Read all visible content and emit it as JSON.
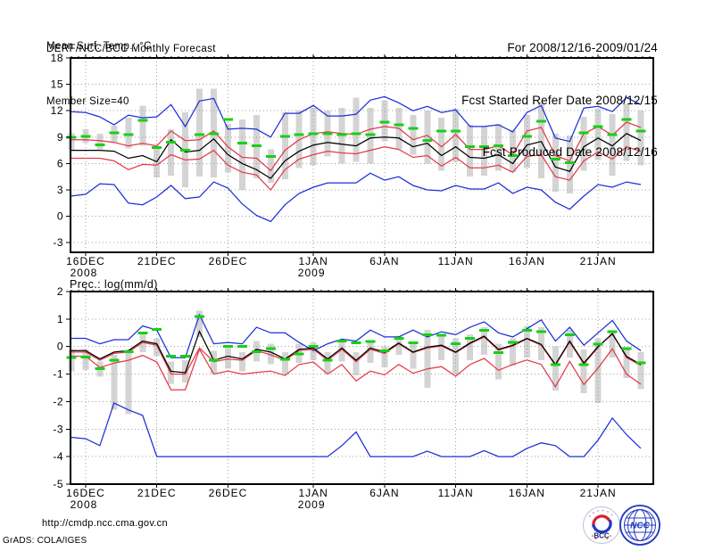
{
  "header": {
    "left": {
      "line1": "DERF/NCC/BCC Monthly Forecast",
      "line2": "Member Size=40"
    },
    "right": {
      "line1": "For 2008/12/16-2009/01/24",
      "line2": "Fcst Started Refer Date 2008/12/15",
      "line3": "Fcst Produced Date 2008/12/16"
    }
  },
  "footer": {
    "url": "http://cmdp.ncc.cma.gov.cn",
    "credit": "GrADS: COLA/IGES"
  },
  "logos": {
    "bcc": "BCC",
    "ncc": "NCC"
  },
  "colors": {
    "blue": "#1c2fd8",
    "red": "#e23b49",
    "green": "#16d018",
    "black": "#000000",
    "bar_gray": "#d4d4d4",
    "grid_gray": "#a0a0a0"
  },
  "chart_data": [
    {
      "type": "line",
      "title": "Mean Surf. Temp.: °C",
      "ylim": [
        -4.1,
        18
      ],
      "yticks": [
        -3,
        0,
        3,
        6,
        9,
        12,
        15,
        18
      ],
      "grid": true,
      "legend": "none",
      "xtick_labels": [
        {
          "index": 1,
          "label": "16DEC",
          "sub": "2008"
        },
        {
          "index": 6,
          "label": "21DEC",
          "sub": ""
        },
        {
          "index": 11,
          "label": "26DEC",
          "sub": ""
        },
        {
          "index": 17,
          "label": "1JAN",
          "sub": "2009"
        },
        {
          "index": 22,
          "label": "6JAN",
          "sub": ""
        },
        {
          "index": 27,
          "label": "11JAN",
          "sub": ""
        },
        {
          "index": 32,
          "label": "16JAN",
          "sub": ""
        },
        {
          "index": 37,
          "label": "21JAN",
          "sub": ""
        }
      ],
      "dates": [
        "2008-12-15",
        "2008-12-16",
        "2008-12-17",
        "2008-12-18",
        "2008-12-19",
        "2008-12-20",
        "2008-12-21",
        "2008-12-22",
        "2008-12-23",
        "2008-12-24",
        "2008-12-25",
        "2008-12-26",
        "2008-12-27",
        "2008-12-28",
        "2008-12-29",
        "2008-12-30",
        "2008-12-31",
        "2009-01-01",
        "2009-01-02",
        "2009-01-03",
        "2009-01-04",
        "2009-01-05",
        "2009-01-06",
        "2009-01-07",
        "2009-01-08",
        "2009-01-09",
        "2009-01-10",
        "2009-01-11",
        "2009-01-12",
        "2009-01-13",
        "2009-01-14",
        "2009-01-15",
        "2009-01-16",
        "2009-01-17",
        "2009-01-18",
        "2009-01-19",
        "2009-01-20",
        "2009-01-21",
        "2009-01-22",
        "2009-01-23",
        "2009-01-24"
      ],
      "series": [
        {
          "name": "ensemble-max",
          "color": "blue",
          "values": [
            11.9,
            11.8,
            11.3,
            10.4,
            11.5,
            11.2,
            11.3,
            12.7,
            10.2,
            13.1,
            13.4,
            9.9,
            10.0,
            9.9,
            9.0,
            11.7,
            11.7,
            12.6,
            11.4,
            11.4,
            11.6,
            13.2,
            13.6,
            12.9,
            12.0,
            12.5,
            11.8,
            12.1,
            10.2,
            10.2,
            10.4,
            9.6,
            11.8,
            12.6,
            8.9,
            8.5,
            12.3,
            12.5,
            11.9,
            13.5,
            12.7
          ]
        },
        {
          "name": "upper-quartile",
          "color": "red",
          "values": [
            8.7,
            8.7,
            8.6,
            8.4,
            8.0,
            8.3,
            8.0,
            9.7,
            8.6,
            8.7,
            9.7,
            7.9,
            6.7,
            6.6,
            5.2,
            7.5,
            8.7,
            9.4,
            9.6,
            9.4,
            9.3,
            9.9,
            10.2,
            10.0,
            8.7,
            9.2,
            7.9,
            9.3,
            7.6,
            7.6,
            8.0,
            7.0,
            9.7,
            10.1,
            6.9,
            6.3,
            9.4,
            10.2,
            9.2,
            10.7,
            10.1
          ]
        },
        {
          "name": "ensemble-mean",
          "color": "black",
          "values": [
            7.5,
            7.5,
            7.5,
            7.4,
            6.6,
            6.9,
            6.2,
            8.7,
            7.3,
            7.5,
            8.8,
            7.0,
            6.0,
            5.3,
            4.3,
            6.3,
            7.4,
            8.1,
            8.4,
            8.2,
            8.0,
            8.9,
            9.0,
            8.9,
            7.9,
            8.3,
            6.9,
            7.9,
            6.7,
            6.6,
            7.0,
            6.0,
            8.1,
            8.5,
            5.6,
            5.1,
            7.9,
            8.9,
            8.0,
            9.4,
            8.6
          ]
        },
        {
          "name": "lower-quartile",
          "color": "red",
          "values": [
            6.6,
            6.6,
            6.6,
            6.3,
            5.3,
            5.9,
            5.8,
            7.0,
            6.4,
            6.5,
            7.5,
            5.8,
            5.0,
            4.7,
            3.0,
            5.3,
            6.5,
            7.0,
            7.4,
            7.2,
            7.1,
            7.5,
            7.9,
            7.6,
            6.7,
            6.9,
            5.7,
            6.7,
            5.5,
            5.5,
            5.8,
            5.0,
            6.8,
            7.0,
            4.5,
            4.1,
            6.3,
            7.3,
            6.5,
            7.9,
            7.4
          ]
        },
        {
          "name": "ensemble-min",
          "color": "blue",
          "values": [
            2.3,
            2.5,
            3.7,
            3.6,
            1.5,
            1.3,
            2.2,
            3.5,
            2.0,
            2.2,
            3.9,
            3.2,
            1.4,
            0.1,
            -0.6,
            1.3,
            2.6,
            3.3,
            3.8,
            3.8,
            3.8,
            4.9,
            4.1,
            4.5,
            3.5,
            3.0,
            2.9,
            3.5,
            3.1,
            3.1,
            3.8,
            2.6,
            3.3,
            3.0,
            1.6,
            0.8,
            2.3,
            3.6,
            3.3,
            3.9,
            3.6
          ]
        },
        {
          "name": "observation",
          "color": "green",
          "marker": "dash",
          "values": [
            9.0,
            9.1,
            8.1,
            9.5,
            9.3,
            10.9,
            7.8,
            8.4,
            7.5,
            9.3,
            9.4,
            11.0,
            8.3,
            8.0,
            6.8,
            9.1,
            9.3,
            9.4,
            9.4,
            9.3,
            9.4,
            9.3,
            10.7,
            10.4,
            10.0,
            8.6,
            9.7,
            9.7,
            7.9,
            7.9,
            8.0,
            6.9,
            9.1,
            10.8,
            6.5,
            6.1,
            9.5,
            10.2,
            9.3,
            11.0,
            9.7
          ]
        }
      ],
      "bars": {
        "name": "member-spread",
        "low": [
          7.5,
          8.3,
          7.6,
          8.4,
          7.7,
          8.0,
          4.4,
          4.6,
          3.3,
          4.5,
          4.4,
          5.0,
          3.0,
          4.3,
          3.8,
          4.2,
          5.5,
          5.8,
          6.8,
          6.0,
          6.2,
          6.0,
          8.5,
          7.6,
          7.0,
          6.0,
          5.2,
          6.2,
          4.5,
          4.6,
          5.2,
          5.0,
          5.5,
          4.3,
          2.8,
          2.6,
          5.2,
          6.4,
          4.6,
          6.3,
          5.8
        ],
        "high": [
          9.5,
          9.9,
          9.4,
          10.3,
          11.2,
          12.6,
          8.0,
          9.9,
          11.8,
          14.5,
          14.5,
          10.5,
          11.0,
          11.5,
          7.6,
          11.8,
          12.0,
          12.3,
          12.0,
          12.3,
          13.5,
          12.3,
          13.2,
          12.3,
          11.5,
          12.0,
          11.2,
          12.2,
          10.4,
          10.2,
          10.5,
          9.8,
          11.5,
          13.0,
          9.4,
          9.2,
          11.3,
          12.2,
          11.6,
          12.8,
          12.0
        ]
      }
    },
    {
      "type": "line",
      "title": "Prec.: log(mm/d)",
      "ylim": [
        -5,
        2
      ],
      "yticks": [
        -5,
        -4,
        -3,
        -2,
        -1,
        0,
        1,
        2
      ],
      "grid": true,
      "legend": "none",
      "xtick_labels": [
        {
          "index": 1,
          "label": "16DEC",
          "sub": "2008"
        },
        {
          "index": 6,
          "label": "21DEC",
          "sub": ""
        },
        {
          "index": 11,
          "label": "26DEC",
          "sub": ""
        },
        {
          "index": 17,
          "label": "1JAN",
          "sub": "2009"
        },
        {
          "index": 22,
          "label": "6JAN",
          "sub": ""
        },
        {
          "index": 27,
          "label": "11JAN",
          "sub": ""
        },
        {
          "index": 32,
          "label": "16JAN",
          "sub": ""
        },
        {
          "index": 37,
          "label": "21JAN",
          "sub": ""
        }
      ],
      "dates": [
        "2008-12-15",
        "2008-12-16",
        "2008-12-17",
        "2008-12-18",
        "2008-12-19",
        "2008-12-20",
        "2008-12-21",
        "2008-12-22",
        "2008-12-23",
        "2008-12-24",
        "2008-12-25",
        "2008-12-26",
        "2008-12-27",
        "2008-12-28",
        "2008-12-29",
        "2008-12-30",
        "2008-12-31",
        "2009-01-01",
        "2009-01-02",
        "2009-01-03",
        "2009-01-04",
        "2009-01-05",
        "2009-01-06",
        "2009-01-07",
        "2009-01-08",
        "2009-01-09",
        "2009-01-10",
        "2009-01-11",
        "2009-01-12",
        "2009-01-13",
        "2009-01-14",
        "2009-01-15",
        "2009-01-16",
        "2009-01-17",
        "2009-01-18",
        "2009-01-19",
        "2009-01-20",
        "2009-01-21",
        "2009-01-22",
        "2009-01-23",
        "2009-01-24"
      ],
      "series": [
        {
          "name": "ensemble-max",
          "color": "blue",
          "values": [
            0.3,
            0.3,
            0.1,
            0.25,
            0.25,
            0.75,
            0.6,
            -0.4,
            -0.4,
            1.15,
            0.1,
            0.15,
            0.1,
            0.7,
            0.5,
            0.5,
            0.15,
            -0.15,
            0.1,
            0.27,
            0.2,
            0.6,
            0.35,
            0.35,
            0.6,
            0.35,
            0.54,
            0.43,
            0.7,
            0.9,
            0.5,
            0.35,
            0.65,
            0.97,
            0.2,
            0.7,
            0.05,
            0.5,
            0.95,
            0.2,
            -0.15
          ]
        },
        {
          "name": "upper-quartile",
          "color": "red",
          "values": [
            -0.2,
            -0.2,
            -0.5,
            -0.25,
            -0.2,
            0.15,
            0.05,
            -1.0,
            -1.0,
            -0.05,
            -0.55,
            -0.45,
            -0.5,
            -0.15,
            -0.3,
            -0.5,
            -0.15,
            -0.1,
            -0.5,
            -0.1,
            -0.55,
            -0.1,
            -0.25,
            0.1,
            -0.22,
            -0.05,
            0.02,
            -0.22,
            0.1,
            0.35,
            -0.13,
            0.02,
            0.28,
            0.05,
            -0.68,
            0.17,
            -0.63,
            -0.03,
            0.48,
            -0.4,
            -0.68
          ]
        },
        {
          "name": "ensemble-mean",
          "color": "black",
          "values": [
            -0.15,
            -0.15,
            -0.45,
            -0.2,
            -0.15,
            0.2,
            0.1,
            -0.9,
            -0.95,
            0.55,
            -0.5,
            -0.35,
            -0.45,
            -0.1,
            -0.2,
            -0.45,
            -0.1,
            -0.05,
            -0.45,
            -0.05,
            -0.5,
            -0.05,
            -0.2,
            0.13,
            -0.2,
            -0.02,
            0.05,
            -0.2,
            0.13,
            0.38,
            -0.1,
            0.05,
            0.3,
            0.08,
            -0.65,
            0.2,
            -0.6,
            0.0,
            0.46,
            -0.36,
            -0.65
          ]
        },
        {
          "name": "lower-quartile",
          "color": "red",
          "values": [
            -0.35,
            -0.35,
            -0.76,
            -0.6,
            -0.5,
            -0.32,
            -0.56,
            -1.57,
            -1.57,
            -0.1,
            -1.0,
            -0.89,
            -1.0,
            -0.94,
            -0.89,
            -1.05,
            -0.65,
            -0.56,
            -1.0,
            -0.65,
            -1.25,
            -0.89,
            -1.03,
            -0.65,
            -0.97,
            -0.81,
            -0.73,
            -1.08,
            -0.65,
            -0.43,
            -0.86,
            -0.65,
            -0.49,
            -0.65,
            -1.46,
            -0.54,
            -1.38,
            -0.78,
            -0.08,
            -1.0,
            -1.37
          ]
        },
        {
          "name": "ensemble-min",
          "color": "blue",
          "values": [
            -3.3,
            -3.35,
            -3.6,
            -2.05,
            -2.3,
            -2.5,
            -4.0,
            -4.0,
            -4.0,
            -4.0,
            -4.0,
            -4.0,
            -4.0,
            -4.0,
            -4.0,
            -4.0,
            -4.0,
            -4.0,
            -4.0,
            -3.6,
            -3.1,
            -4.0,
            -4.0,
            -4.0,
            -4.0,
            -3.8,
            -4.0,
            -4.0,
            -4.0,
            -3.78,
            -4.0,
            -4.0,
            -3.7,
            -3.5,
            -3.6,
            -4.0,
            -4.0,
            -3.4,
            -2.6,
            -3.2,
            -3.7
          ]
        },
        {
          "name": "observation",
          "color": "green",
          "marker": "dash",
          "values": [
            -0.4,
            -0.38,
            -0.81,
            -0.49,
            -0.19,
            0.5,
            0.62,
            -0.35,
            -0.35,
            1.1,
            -0.49,
            0.0,
            0.0,
            -0.19,
            -0.08,
            -0.46,
            -0.27,
            0.0,
            -0.5,
            0.2,
            0.13,
            0.19,
            -0.16,
            0.3,
            0.13,
            0.43,
            0.41,
            0.11,
            0.3,
            0.59,
            -0.22,
            0.16,
            0.59,
            0.54,
            -0.65,
            0.43,
            -0.65,
            0.08,
            0.54,
            -0.08,
            -0.6
          ]
        }
      ],
      "bars": {
        "name": "member-spread",
        "low": [
          -0.9,
          -0.85,
          -1.1,
          -2.3,
          -2.45,
          -0.2,
          -0.35,
          -1.35,
          -1.3,
          0.35,
          -1.0,
          -0.8,
          -0.9,
          -0.55,
          -0.65,
          -1.0,
          -0.6,
          -0.5,
          -1.0,
          -0.55,
          -1.05,
          -0.6,
          -0.75,
          -0.3,
          -0.8,
          -1.5,
          -0.5,
          -1.0,
          -0.5,
          -0.3,
          -1.2,
          -0.7,
          -0.4,
          -0.5,
          -1.6,
          -0.4,
          -1.7,
          -2.05,
          -0.4,
          -1.15,
          -1.55
        ],
        "high": [
          -0.1,
          -0.1,
          -0.55,
          -0.3,
          -0.15,
          0.45,
          0.3,
          -0.55,
          -0.5,
          1.3,
          -0.15,
          -0.05,
          -0.2,
          0.2,
          0.1,
          -0.2,
          0.1,
          0.15,
          -0.2,
          0.2,
          -0.2,
          0.2,
          0.0,
          0.4,
          0.1,
          0.6,
          0.45,
          0.3,
          0.45,
          0.7,
          0.1,
          0.3,
          0.75,
          0.7,
          0.0,
          0.6,
          -0.1,
          0.3,
          0.55,
          -0.05,
          -0.2
        ]
      }
    }
  ]
}
